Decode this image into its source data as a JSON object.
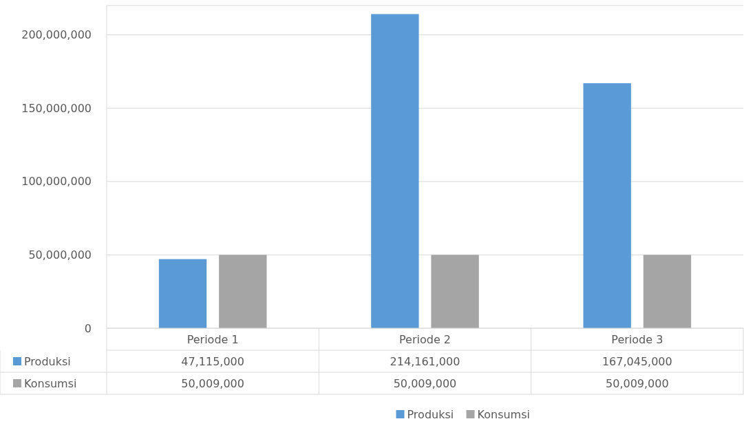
{
  "chart_data": {
    "type": "bar",
    "categories": [
      "Periode 1",
      "Periode 2",
      "Periode 3"
    ],
    "series": [
      {
        "name": "Produksi",
        "color": "#5b9bd5",
        "values": [
          47115000,
          214161000,
          167045000
        ],
        "value_labels": [
          "47,115,000",
          "214,161,000",
          "167,045,000"
        ]
      },
      {
        "name": "Konsumsi",
        "color": "#a5a5a5",
        "values": [
          50009000,
          50009000,
          50009000
        ],
        "value_labels": [
          "50,009,000",
          "50,009,000",
          "50,009,000"
        ]
      }
    ],
    "ylim": [
      0,
      220000000
    ],
    "yticks": [
      {
        "value": 0,
        "label": "0"
      },
      {
        "value": 50000000,
        "label": "50,000,000"
      },
      {
        "value": 100000000,
        "label": "100,000,000"
      },
      {
        "value": 150000000,
        "label": "150,000,000"
      },
      {
        "value": 200000000,
        "label": "200,000,000"
      }
    ],
    "grid": "y",
    "legend": "bottom"
  }
}
